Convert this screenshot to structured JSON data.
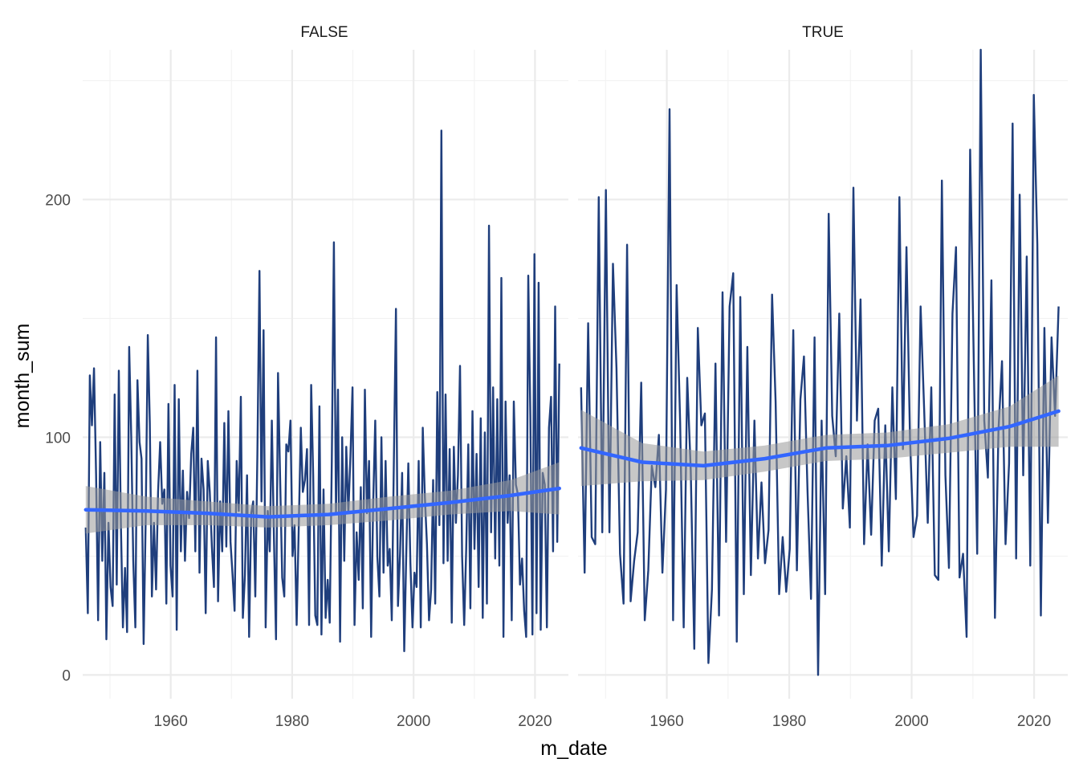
{
  "chart_data": {
    "type": "line",
    "facet_variable_values": [
      "FALSE",
      "TRUE"
    ],
    "xlabel": "m_date",
    "ylabel": "month_sum",
    "xlim": [
      1945.5,
      2025.5
    ],
    "ylim": [
      -10,
      263
    ],
    "x_ticks": [
      1960,
      1980,
      2000,
      2020
    ],
    "y_ticks": [
      0,
      100,
      200
    ],
    "grid": true,
    "colors": {
      "series_line": "#1f3e7c",
      "smooth_line": "#3366ff",
      "smooth_band": "#999999"
    },
    "panels": [
      {
        "strip": "FALSE",
        "series": {
          "x_start": 1946,
          "x_end": 2024,
          "values": [
            62,
            26,
            126,
            105,
            129,
            84,
            23,
            98,
            48,
            85,
            15,
            64,
            37,
            29,
            118,
            38,
            128,
            63,
            20,
            45,
            18,
            138,
            100,
            48,
            20,
            124,
            98,
            91,
            13,
            66,
            143,
            106,
            33,
            64,
            36,
            77,
            98,
            72,
            78,
            30,
            114,
            46,
            33,
            122,
            19,
            116,
            52,
            86,
            48,
            77,
            66,
            93,
            104,
            52,
            128,
            43,
            91,
            78,
            26,
            90,
            77,
            54,
            37,
            142,
            31,
            73,
            52,
            106,
            54,
            111,
            56,
            42,
            27,
            90,
            69,
            117,
            24,
            42,
            84,
            16,
            68,
            73,
            33,
            93,
            170,
            73,
            145,
            20,
            69,
            52,
            107,
            58,
            15,
            127,
            83,
            41,
            33,
            97,
            94,
            107,
            50,
            63,
            21,
            62,
            104,
            77,
            82,
            95,
            21,
            122,
            84,
            25,
            21,
            113,
            17,
            78,
            24,
            40,
            22,
            90,
            182,
            68,
            120,
            14,
            100,
            48,
            96,
            68,
            92,
            121,
            21,
            60,
            40,
            79,
            28,
            120,
            68,
            90,
            16,
            72,
            107,
            50,
            33,
            100,
            43,
            90,
            46,
            53,
            23,
            90,
            154,
            29,
            51,
            85,
            10,
            50,
            89,
            47,
            20,
            43,
            37,
            90,
            20,
            104,
            75,
            55,
            23,
            36,
            82,
            30,
            119,
            63,
            229,
            47,
            118,
            48,
            95,
            22,
            96,
            64,
            84,
            130,
            50,
            21,
            53,
            97,
            28,
            111,
            53,
            93,
            37,
            108,
            24,
            102,
            30,
            189,
            60,
            121,
            49,
            116,
            46,
            167,
            16,
            115,
            64,
            84,
            23,
            115,
            80,
            76,
            38,
            49,
            27,
            16,
            168,
            109,
            17,
            177,
            26,
            165,
            19,
            85,
            80,
            20,
            104,
            117,
            52,
            155,
            56,
            131
          ]
        },
        "smooth": {
          "x": [
            1946,
            1956,
            1966,
            1976,
            1986,
            1996,
            2006,
            2016,
            2024
          ],
          "y": [
            69.5,
            69,
            68,
            66.5,
            67.5,
            70,
            72.5,
            75.5,
            78.5
          ],
          "band_halfwidth": [
            10,
            6,
            5,
            4.5,
            4.5,
            5,
            5,
            6.5,
            11
          ]
        }
      },
      {
        "strip": "TRUE",
        "series": {
          "x_start": 1946,
          "x_end": 2024,
          "values": [
            121,
            43,
            148,
            58,
            55,
            201,
            60,
            204,
            60,
            173,
            129,
            51,
            30,
            181,
            31,
            48,
            60,
            123,
            23,
            44,
            88,
            79,
            101,
            43,
            78,
            238,
            23,
            164,
            106,
            20,
            125,
            86,
            11,
            146,
            105,
            110,
            5,
            36,
            131,
            25,
            161,
            56,
            155,
            169,
            14,
            159,
            34,
            138,
            42,
            107,
            49,
            81,
            47,
            61,
            160,
            115,
            34,
            58,
            35,
            53,
            145,
            44,
            116,
            134,
            78,
            32,
            142,
            0,
            107,
            34,
            194,
            109,
            92,
            152,
            70,
            92,
            62,
            205,
            107,
            158,
            55,
            97,
            59,
            107,
            112,
            46,
            105,
            52,
            121,
            74,
            201,
            95,
            180,
            99,
            58,
            67,
            155,
            111,
            64,
            121,
            42,
            40,
            208,
            84,
            45,
            152,
            180,
            41,
            51,
            16,
            221,
            135,
            51,
            263,
            107,
            83,
            166,
            24,
            103,
            132,
            55,
            89,
            232,
            49,
            202,
            84,
            176,
            46,
            244,
            181,
            25,
            146,
            64,
            142,
            109,
            155
          ]
        },
        "smooth": {
          "x": [
            1946,
            1956,
            1966,
            1976,
            1986,
            1996,
            2006,
            2016,
            2024
          ],
          "y": [
            95.5,
            89.5,
            88,
            91,
            95.5,
            96.5,
            99.5,
            104.5,
            111
          ],
          "band_halfwidth": [
            16,
            8,
            6,
            5.5,
            5.5,
            5.5,
            6,
            8.5,
            15
          ]
        }
      }
    ]
  }
}
